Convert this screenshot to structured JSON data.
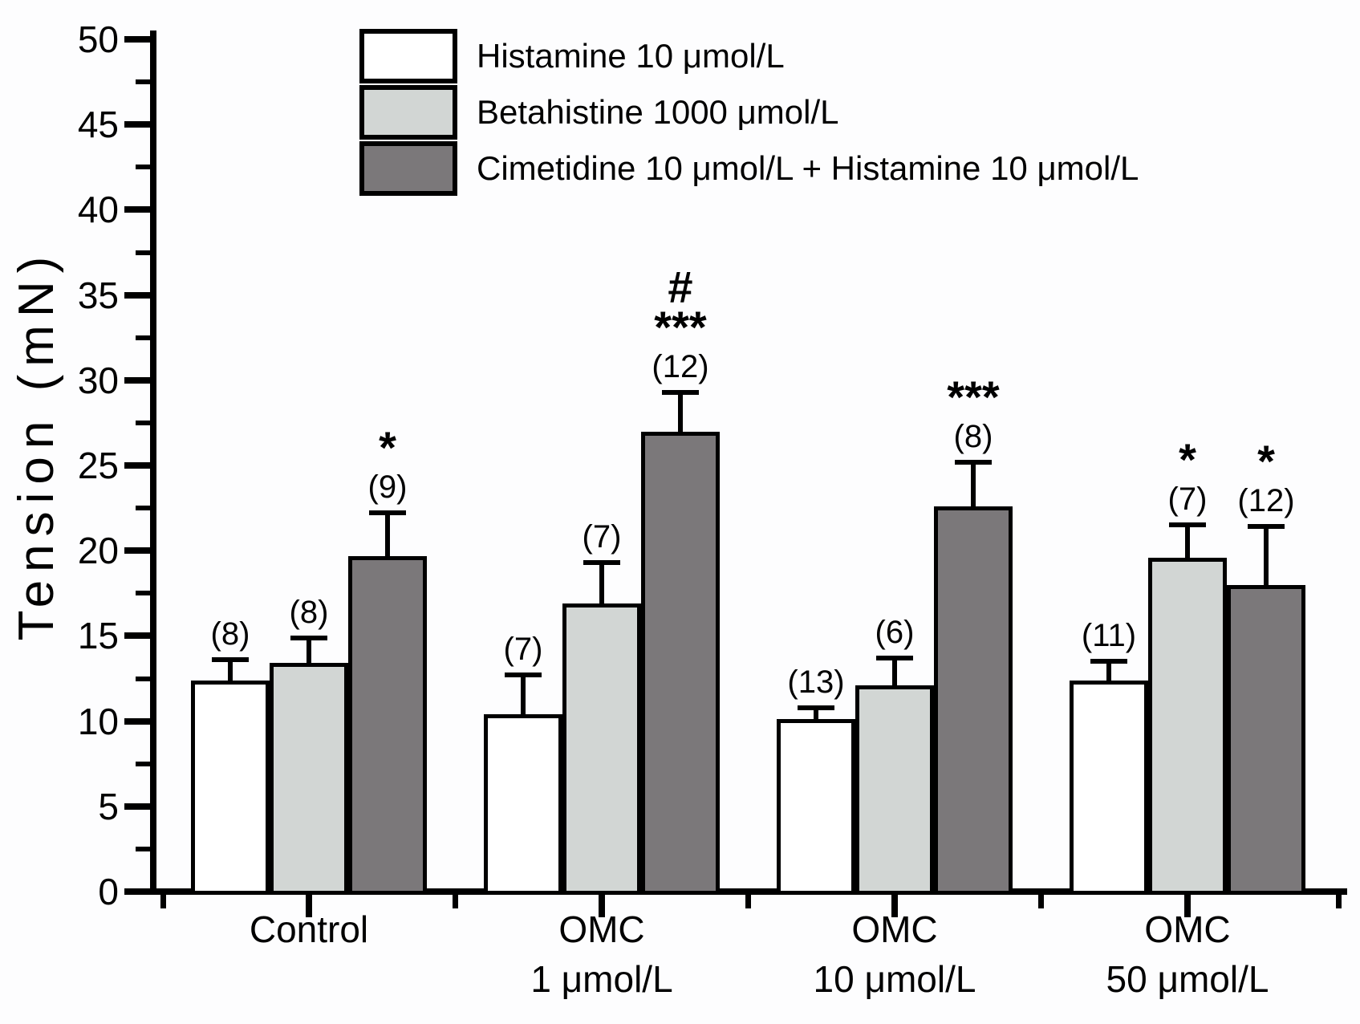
{
  "chart_data": {
    "type": "bar",
    "title": "",
    "xlabel": "",
    "ylabel": "Tension (mN)",
    "ylim": [
      0,
      50
    ],
    "y_major_step": 5,
    "y_minor_step": 2.5,
    "y_tick_labels": [
      "0",
      "5",
      "10",
      "15",
      "20",
      "25",
      "30",
      "35",
      "40",
      "45",
      "50"
    ],
    "grid": false,
    "legend_position": "top-inside",
    "categories": [
      "Control",
      "OMC 1 μmol/L",
      "OMC 10 μmol/L",
      "OMC 50 μmol/L"
    ],
    "category_lines": [
      [
        "Control"
      ],
      [
        "OMC",
        "1 μmol/L"
      ],
      [
        "OMC",
        "10 μmol/L"
      ],
      [
        "OMC",
        "50 μmol/L"
      ]
    ],
    "series": [
      {
        "name": "Histamine 10 μmol/L",
        "fill": "#ffffff",
        "values": [
          12.4,
          10.4,
          10.1,
          12.4
        ],
        "errors": [
          1.2,
          2.3,
          0.7,
          1.1
        ],
        "n": [
          8,
          7,
          13,
          11
        ],
        "sig": [
          [],
          [],
          [],
          []
        ]
      },
      {
        "name": "Betahistine 1000 μmol/L",
        "fill": "#d2d6d4",
        "values": [
          13.4,
          16.9,
          12.1,
          19.6
        ],
        "errors": [
          1.5,
          2.4,
          1.6,
          1.9
        ],
        "n": [
          8,
          7,
          6,
          7
        ],
        "sig": [
          [],
          [],
          [],
          [
            "*"
          ]
        ]
      },
      {
        "name": "Cimetidine 10 μmol/L + Histamine 10 μmol/L",
        "fill": "#7b787a",
        "values": [
          19.7,
          27.0,
          22.6,
          18.0
        ],
        "errors": [
          2.5,
          2.3,
          2.6,
          3.4
        ],
        "n": [
          9,
          12,
          8,
          12
        ],
        "sig": [
          [
            "*"
          ],
          [
            "***",
            "#"
          ],
          [
            "***"
          ],
          [
            "*"
          ]
        ]
      }
    ],
    "n_label_format": "(n)",
    "error_bar_style": "upper-cap-only",
    "annotation_order_above_bar": [
      "error-cap",
      "(n)",
      "significance-symbols"
    ]
  }
}
